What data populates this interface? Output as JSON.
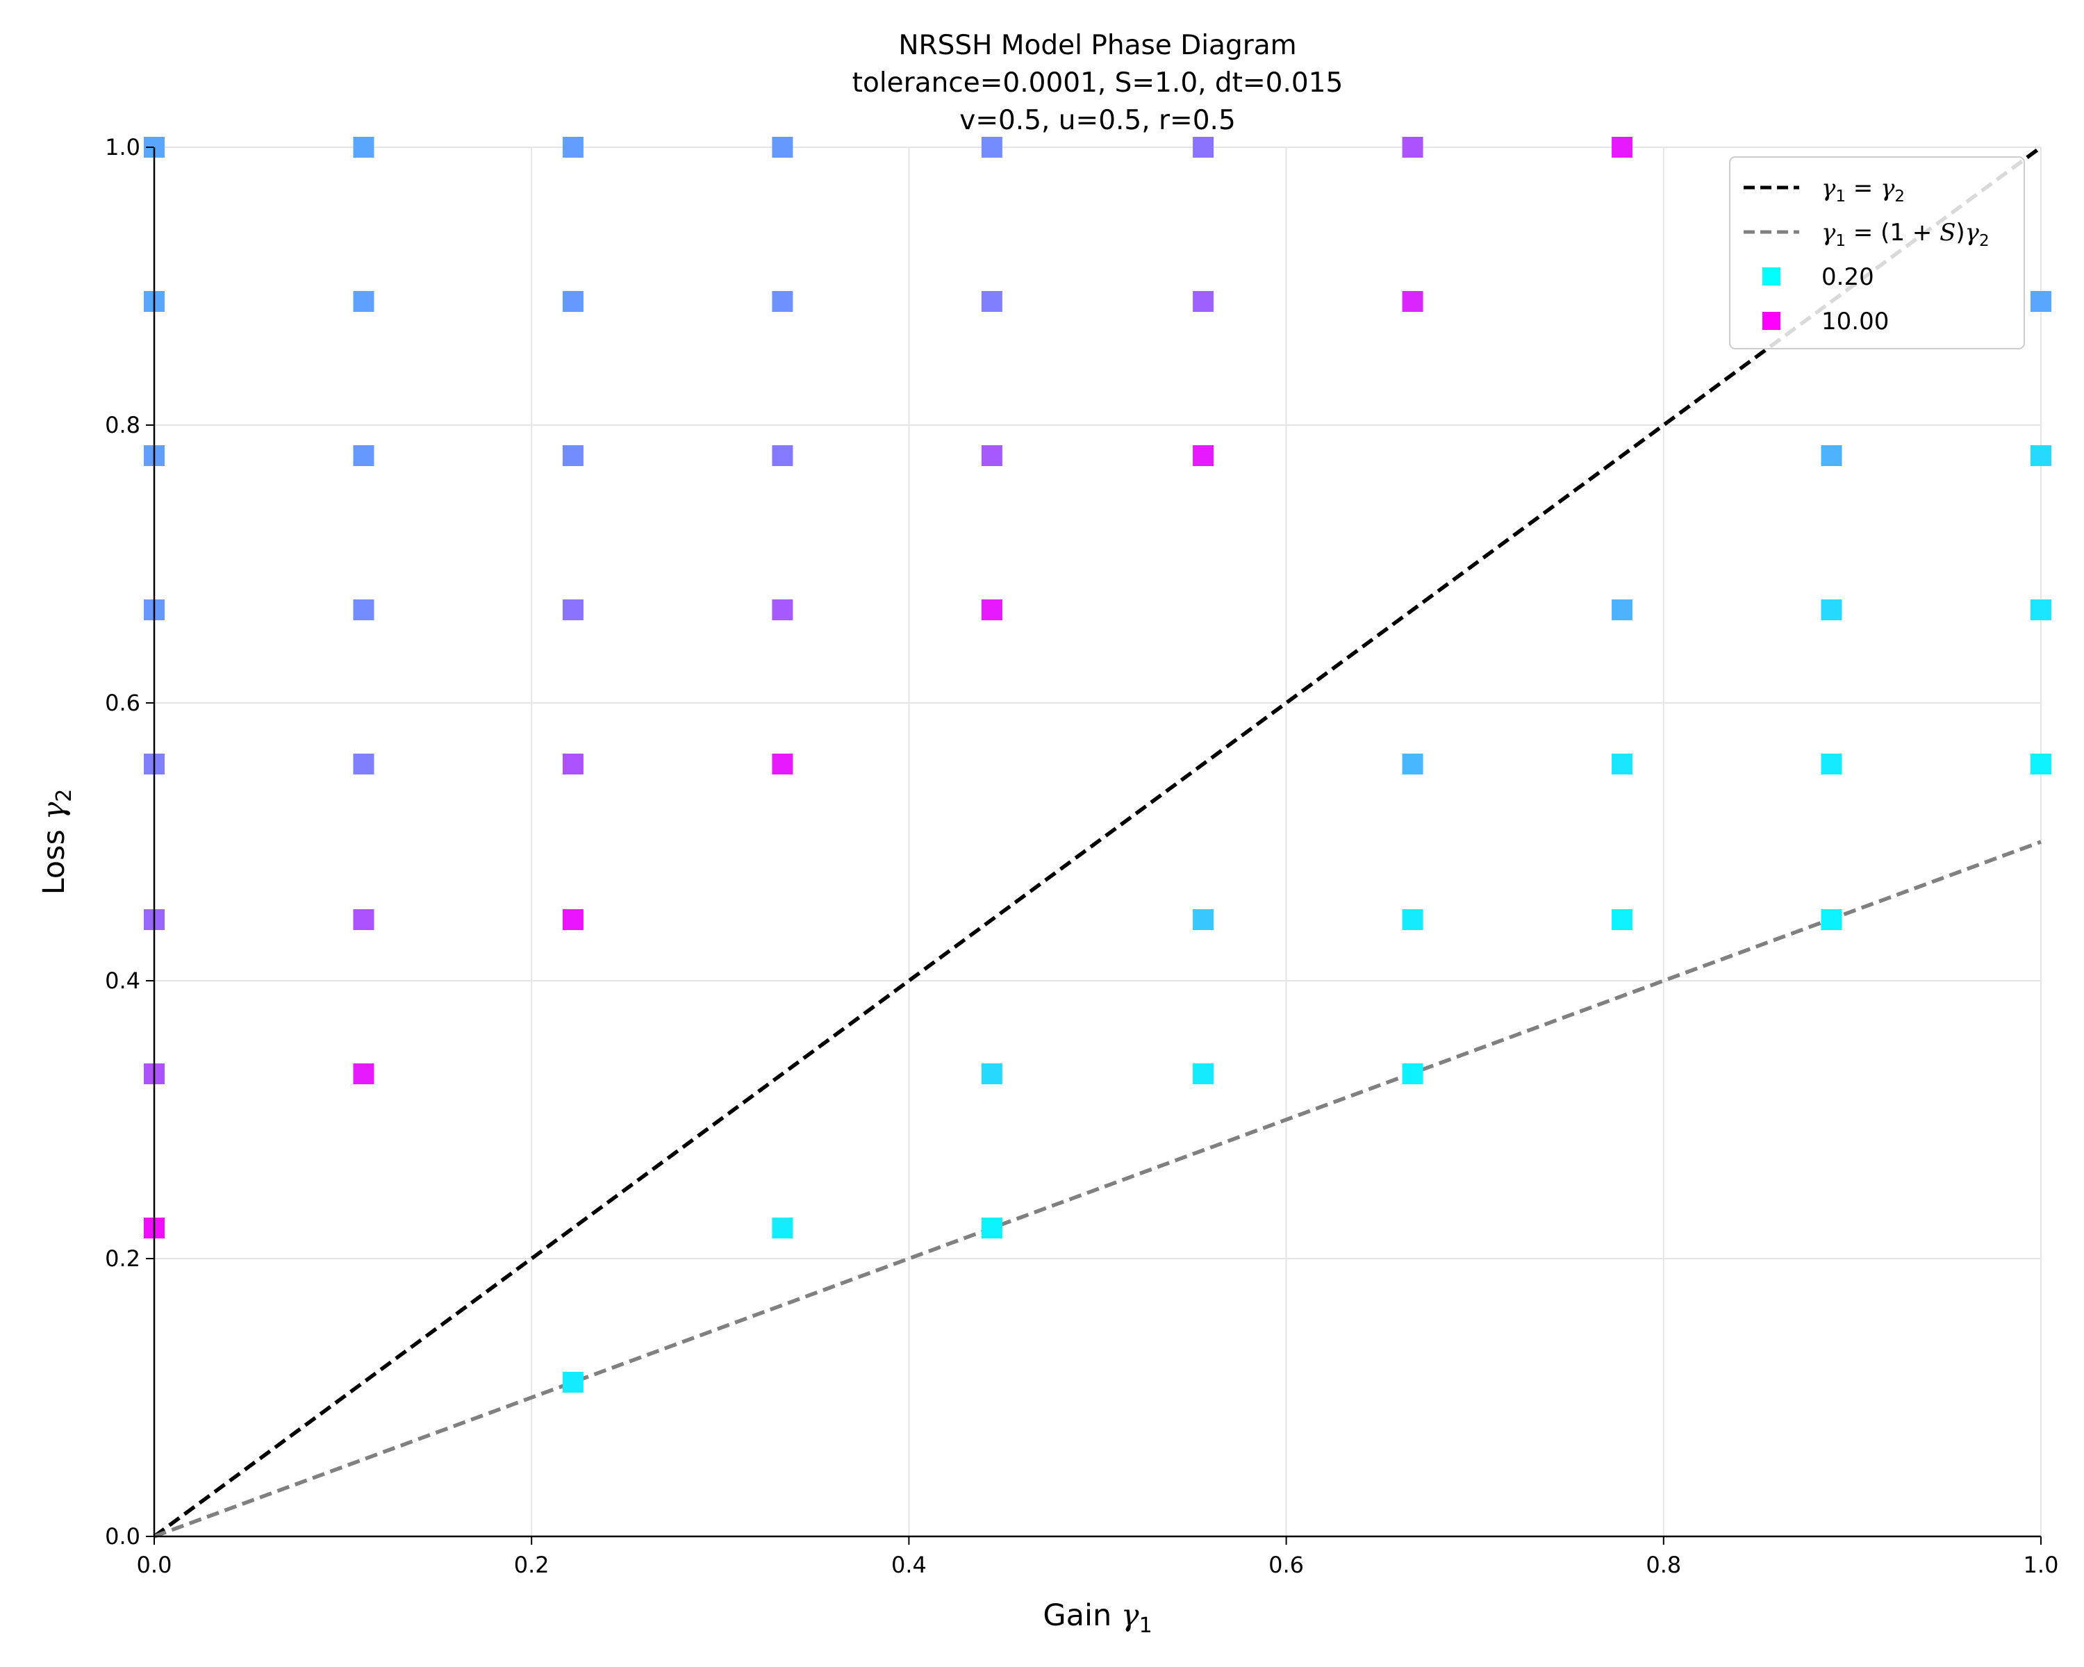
{
  "chart_data": {
    "type": "scatter",
    "title": "NRSSH Model Phase Diagram",
    "subtitle_lines": [
      "tolerance=0.0001, S=1.0, dt=0.015",
      "v=0.5, u=0.5, r=0.5"
    ],
    "xlabel": "Gain γ₁",
    "ylabel": "Loss γ₂",
    "xlim": [
      0.0,
      1.0
    ],
    "ylim": [
      0.0,
      1.0
    ],
    "xticks": [
      "0.0",
      "0.2",
      "0.4",
      "0.6",
      "0.8",
      "1.0"
    ],
    "yticks": [
      "0.0",
      "0.2",
      "0.4",
      "0.6",
      "0.8",
      "1.0"
    ],
    "grid": true,
    "legend_position": "top-right",
    "colormap": "cool",
    "color_range": [
      0.2,
      10.0
    ],
    "lines": [
      {
        "label": "γ₁ = γ₂",
        "x": [
          0.0,
          1.0
        ],
        "y": [
          0.0,
          1.0
        ],
        "color": "#000000",
        "style": "dashed"
      },
      {
        "label": "γ₁ = (1 + S)γ₂",
        "x": [
          0.0,
          1.0
        ],
        "y": [
          0.0,
          0.5
        ],
        "color": "#808080",
        "style": "dashed"
      }
    ],
    "legend_markers": [
      {
        "label": "0.20",
        "color": "#00ffff"
      },
      {
        "label": "10.00",
        "color": "#ff00ff"
      }
    ],
    "points": [
      {
        "x": 0.0,
        "y": 1.0,
        "t": 0.35
      },
      {
        "x": 0.111,
        "y": 1.0,
        "t": 0.35
      },
      {
        "x": 0.222,
        "y": 1.0,
        "t": 0.38
      },
      {
        "x": 0.333,
        "y": 1.0,
        "t": 0.4
      },
      {
        "x": 0.444,
        "y": 1.0,
        "t": 0.45
      },
      {
        "x": 0.556,
        "y": 1.0,
        "t": 0.55
      },
      {
        "x": 0.667,
        "y": 1.0,
        "t": 0.68
      },
      {
        "x": 0.778,
        "y": 1.0,
        "t": 0.9
      },
      {
        "x": 0.0,
        "y": 0.889,
        "t": 0.35
      },
      {
        "x": 0.111,
        "y": 0.889,
        "t": 0.37
      },
      {
        "x": 0.222,
        "y": 0.889,
        "t": 0.4
      },
      {
        "x": 0.333,
        "y": 0.889,
        "t": 0.43
      },
      {
        "x": 0.444,
        "y": 0.889,
        "t": 0.5
      },
      {
        "x": 0.556,
        "y": 0.889,
        "t": 0.62
      },
      {
        "x": 0.667,
        "y": 0.889,
        "t": 0.85
      },
      {
        "x": 1.0,
        "y": 0.889,
        "t": 0.35
      },
      {
        "x": 0.0,
        "y": 0.778,
        "t": 0.38
      },
      {
        "x": 0.111,
        "y": 0.778,
        "t": 0.4
      },
      {
        "x": 0.222,
        "y": 0.778,
        "t": 0.45
      },
      {
        "x": 0.333,
        "y": 0.778,
        "t": 0.52
      },
      {
        "x": 0.444,
        "y": 0.778,
        "t": 0.65
      },
      {
        "x": 0.556,
        "y": 0.778,
        "t": 0.9
      },
      {
        "x": 0.889,
        "y": 0.778,
        "t": 0.3
      },
      {
        "x": 1.0,
        "y": 0.778,
        "t": 0.15
      },
      {
        "x": 0.0,
        "y": 0.667,
        "t": 0.4
      },
      {
        "x": 0.111,
        "y": 0.667,
        "t": 0.45
      },
      {
        "x": 0.222,
        "y": 0.667,
        "t": 0.55
      },
      {
        "x": 0.333,
        "y": 0.667,
        "t": 0.65
      },
      {
        "x": 0.444,
        "y": 0.667,
        "t": 0.9
      },
      {
        "x": 0.778,
        "y": 0.667,
        "t": 0.3
      },
      {
        "x": 0.889,
        "y": 0.667,
        "t": 0.15
      },
      {
        "x": 1.0,
        "y": 0.667,
        "t": 0.1
      },
      {
        "x": 0.0,
        "y": 0.556,
        "t": 0.5
      },
      {
        "x": 0.111,
        "y": 0.556,
        "t": 0.5
      },
      {
        "x": 0.222,
        "y": 0.556,
        "t": 0.68
      },
      {
        "x": 0.333,
        "y": 0.556,
        "t": 0.9
      },
      {
        "x": 0.667,
        "y": 0.556,
        "t": 0.28
      },
      {
        "x": 0.778,
        "y": 0.556,
        "t": 0.1
      },
      {
        "x": 0.889,
        "y": 0.556,
        "t": 0.08
      },
      {
        "x": 1.0,
        "y": 0.556,
        "t": 0.05
      },
      {
        "x": 0.0,
        "y": 0.444,
        "t": 0.6
      },
      {
        "x": 0.111,
        "y": 0.444,
        "t": 0.68
      },
      {
        "x": 0.222,
        "y": 0.444,
        "t": 0.92
      },
      {
        "x": 0.556,
        "y": 0.444,
        "t": 0.22
      },
      {
        "x": 0.667,
        "y": 0.444,
        "t": 0.08
      },
      {
        "x": 0.778,
        "y": 0.444,
        "t": 0.05
      },
      {
        "x": 0.889,
        "y": 0.444,
        "t": 0.05
      },
      {
        "x": 0.0,
        "y": 0.333,
        "t": 0.68
      },
      {
        "x": 0.111,
        "y": 0.333,
        "t": 0.9
      },
      {
        "x": 0.444,
        "y": 0.333,
        "t": 0.15
      },
      {
        "x": 0.556,
        "y": 0.333,
        "t": 0.08
      },
      {
        "x": 0.667,
        "y": 0.333,
        "t": 0.05
      },
      {
        "x": 0.0,
        "y": 0.222,
        "t": 0.95
      },
      {
        "x": 0.333,
        "y": 0.222,
        "t": 0.07
      },
      {
        "x": 0.444,
        "y": 0.222,
        "t": 0.05
      },
      {
        "x": 0.222,
        "y": 0.111,
        "t": 0.08
      }
    ]
  }
}
